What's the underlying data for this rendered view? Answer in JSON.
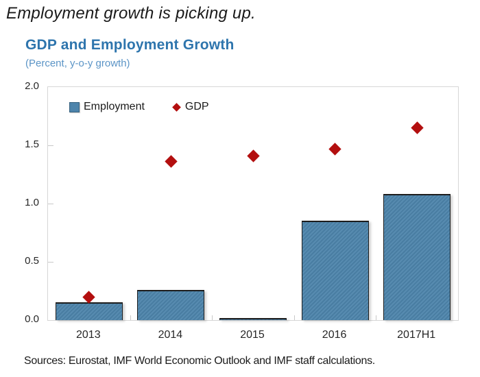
{
  "heading": "Employment growth is picking up.",
  "chart": {
    "title": "GDP and Employment Growth",
    "subtitle": "(Percent, y-o-y growth)",
    "source": "Sources: Eurostat, IMF World Economic Outlook and IMF staff calculations."
  },
  "colors": {
    "title_blue": "#2e75ad",
    "subtitle_blue": "#5b94c6",
    "bar_fill": "#4d84ab",
    "bar_border": "#1c1c1c",
    "diamond_red": "#b30f0f",
    "frame_gray": "#d6d6d6",
    "text": "#1a1a1a"
  },
  "chart_data": {
    "type": "bar",
    "categories": [
      "2013",
      "2014",
      "2015",
      "2016",
      "2017H1"
    ],
    "series": [
      {
        "name": "Employment",
        "type": "bar",
        "values": [
          0.15,
          0.26,
          0.02,
          0.85,
          1.08
        ]
      },
      {
        "name": "GDP",
        "type": "scatter",
        "values": [
          0.2,
          1.36,
          1.41,
          1.47,
          1.65
        ]
      }
    ],
    "title": "GDP and Employment Growth",
    "subtitle": "(Percent, y-o-y growth)",
    "xlabel": "",
    "ylabel": "",
    "ylim": [
      0.0,
      2.0
    ],
    "yticks": [
      0.0,
      0.5,
      1.0,
      1.5,
      2.0
    ],
    "ytick_labels": [
      "0.0",
      "0.5",
      "1.0",
      "1.5",
      "2.0"
    ],
    "grid": false,
    "legend_position": "inside-top-left"
  }
}
